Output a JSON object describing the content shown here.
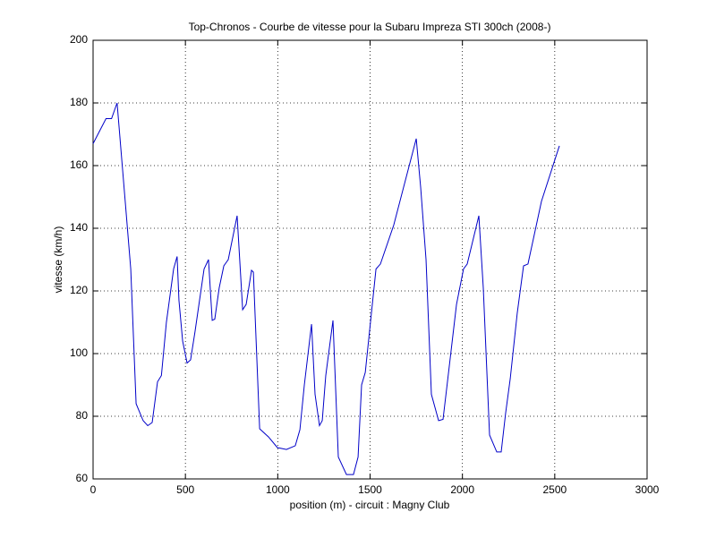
{
  "chart_data": {
    "type": "line",
    "title": "Top-Chronos - Courbe de vitesse pour la Subaru Impreza STI 300ch (2008-)",
    "xlabel": "position (m) - circuit : Magny Club",
    "ylabel": "vitesse (km/h)",
    "x": [
      0,
      70,
      100,
      130,
      174,
      204,
      233,
      271,
      296,
      320,
      349,
      370,
      397,
      436,
      455,
      465,
      485,
      509,
      528,
      552,
      601,
      625,
      645,
      659,
      683,
      708,
      732,
      780,
      810,
      829,
      858,
      868,
      902,
      950,
      998,
      1047,
      1095,
      1120,
      1144,
      1183,
      1202,
      1226,
      1241,
      1260,
      1299,
      1328,
      1372,
      1410,
      1435,
      1454,
      1474,
      1532,
      1556,
      1628,
      1750,
      1774,
      1803,
      1832,
      1871,
      1895,
      1919,
      1968,
      2006,
      2026,
      2089,
      2113,
      2147,
      2186,
      2210,
      2234,
      2259,
      2297,
      2331,
      2355,
      2428,
      2525
    ],
    "series": [
      {
        "color": "#0000c8",
        "values": [
          167,
          175,
          175,
          180,
          148.6,
          127,
          84,
          78.6,
          77,
          78,
          91,
          93,
          110,
          127,
          131,
          117,
          104,
          97,
          98,
          107,
          127,
          130,
          110.6,
          111,
          121,
          128,
          130,
          144,
          114,
          115.7,
          126.6,
          126,
          76,
          73.4,
          70,
          69.4,
          70.6,
          75.7,
          90,
          109.4,
          87,
          77,
          78.6,
          93,
          110.6,
          67,
          61.4,
          61.4,
          67,
          90,
          94,
          127,
          128.6,
          141,
          168.6,
          153,
          130,
          87,
          78.6,
          79,
          91,
          115.7,
          127,
          128.6,
          144,
          121,
          74,
          68.6,
          68.6,
          81,
          92,
          113,
          128,
          128.6,
          148.6,
          166.3
        ]
      }
    ],
    "xlim": [
      0,
      3000
    ],
    "xticks": [
      0,
      500,
      1000,
      1500,
      2000,
      2500,
      3000
    ],
    "ylim": [
      60,
      200
    ],
    "yticks": [
      60,
      80,
      100,
      120,
      140,
      160,
      180,
      200
    ],
    "grid": true
  }
}
